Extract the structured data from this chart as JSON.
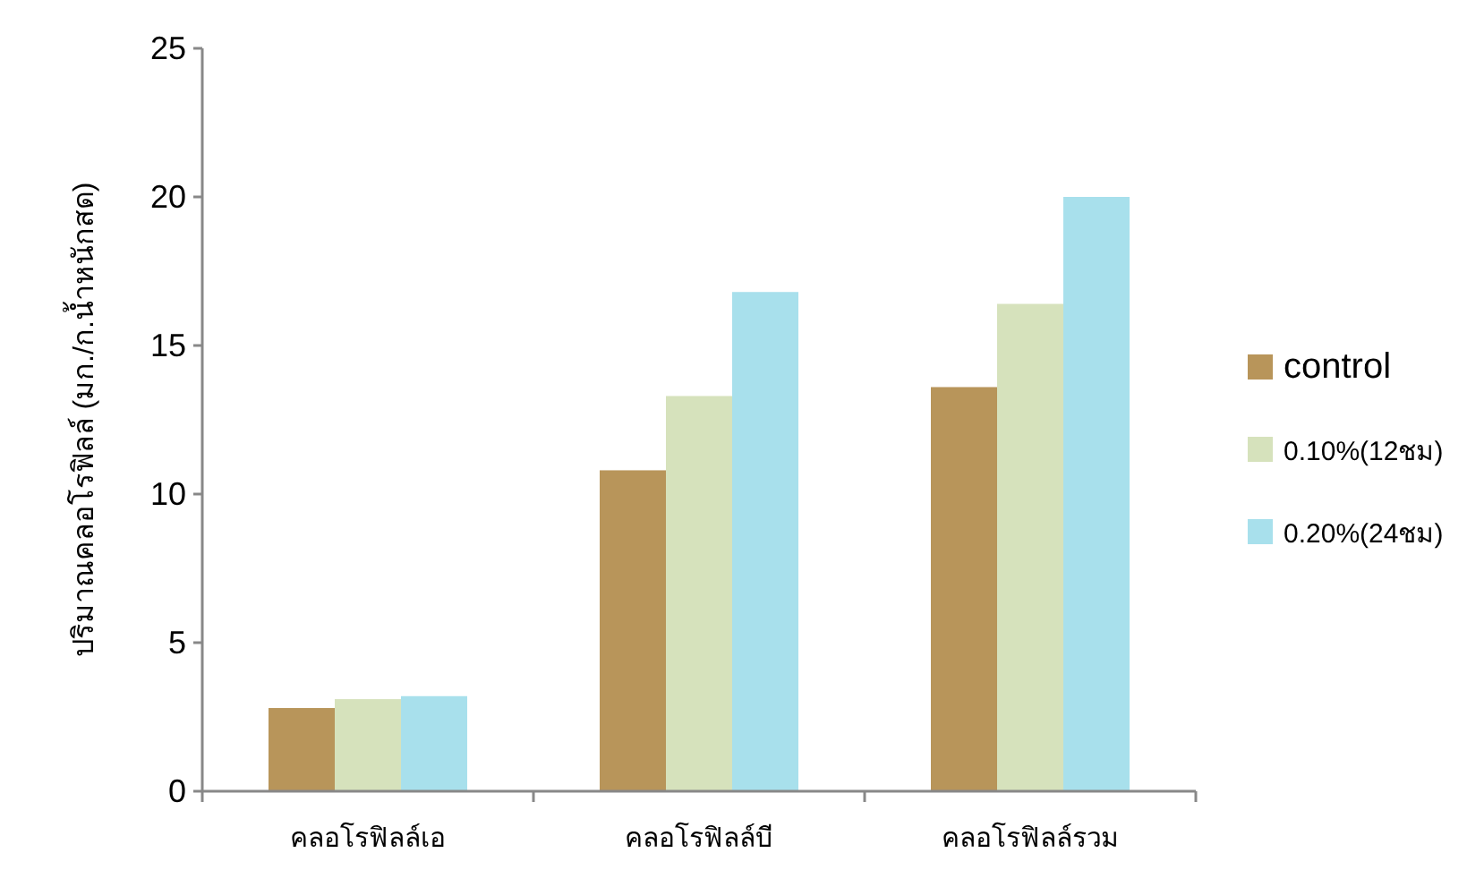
{
  "chart_data": {
    "type": "bar",
    "ylabel": "ปริมาณคลอโรฟิลล์ (มก./ก.น้ำหนักสด)",
    "categories": [
      "คลอโรฟิลล์เอ",
      "คลอโรฟิลล์บี",
      "คลอโรฟิลล์รวม"
    ],
    "series": [
      {
        "name": "control",
        "color": "#b8955a",
        "values": [
          2.8,
          10.8,
          13.6
        ]
      },
      {
        "name": "0.10%(12ชม)",
        "color": "#d6e2bc",
        "values": [
          3.1,
          13.3,
          16.4
        ]
      },
      {
        "name": "0.20%(24ชม)",
        "color": "#a8e0ec",
        "values": [
          3.2,
          16.8,
          20.0
        ]
      }
    ],
    "ylim": [
      0,
      25
    ],
    "yticks": [
      0,
      5,
      10,
      15,
      20,
      25
    ],
    "grid": false,
    "legend": "right"
  }
}
